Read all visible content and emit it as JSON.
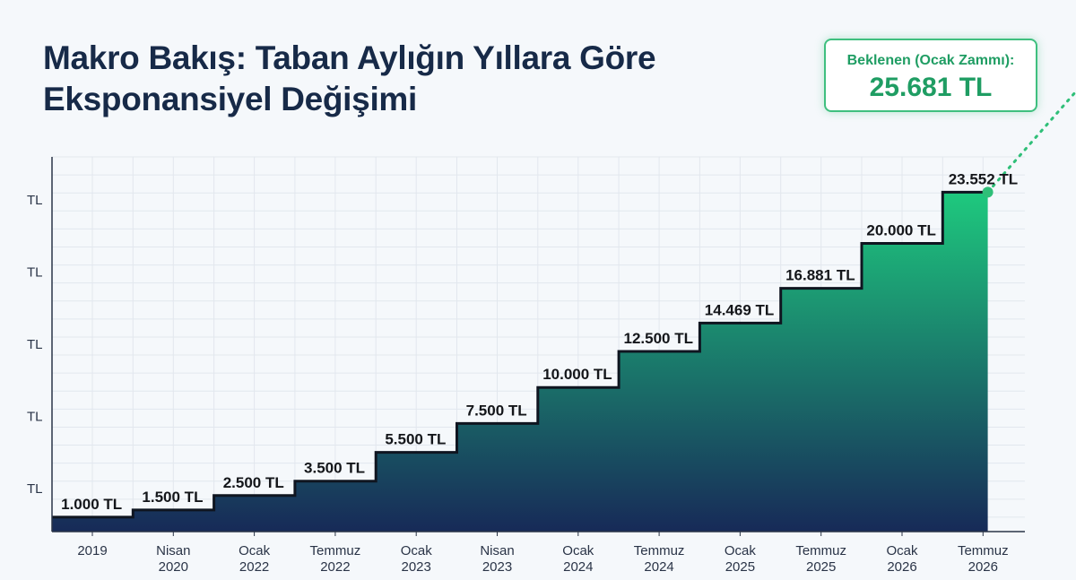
{
  "title_line1": "Makro Bakış: Taban Aylığın Yıllara Göre",
  "title_line2": "Eksponansiyel Değişimi",
  "callout": {
    "label": "Beklenen (Ocak Zammı):",
    "value": "25.681 TL"
  },
  "colors": {
    "title": "#172a48",
    "accent": "#1f9d63",
    "area_top": "#1ec97e",
    "area_bottom": "#172a58",
    "step_line": "#0f1520",
    "grid": "#e2e7ee"
  },
  "chart_data": {
    "type": "area",
    "subtype": "step",
    "title": "Makro Bakış: Taban Aylığın Yıllara Göre Eksponansiyel Değişimi",
    "categories": [
      [
        "2019"
      ],
      [
        "Nisan",
        "2020"
      ],
      [
        "Ocak",
        "2022"
      ],
      [
        "Temmuz",
        "2022"
      ],
      [
        "Ocak",
        "2023"
      ],
      [
        "Nisan",
        "2023"
      ],
      [
        "Ocak",
        "2024"
      ],
      [
        "Temmuz",
        "2024"
      ],
      [
        "Ocak",
        "2025"
      ],
      [
        "Temmuz",
        "2025"
      ],
      [
        "Ocak",
        "2026"
      ],
      [
        "Temmuz",
        "2026"
      ]
    ],
    "values": [
      1000,
      1500,
      2500,
      3500,
      5500,
      7500,
      10000,
      12500,
      14469,
      16881,
      20000,
      23552
    ],
    "value_labels": [
      "1.000 TL",
      "1.500 TL",
      "2.500 TL",
      "3.500 TL",
      "5.500 TL",
      "7.500 TL",
      "10.000 TL",
      "12.500 TL",
      "14.469 TL",
      "16.881 TL",
      "20.000 TL",
      "23.552 TL"
    ],
    "projected": {
      "value": 25681,
      "label": "25.681 TL",
      "style": "dotted"
    },
    "y_tick_labels": [
      "TL",
      "TL",
      "TL",
      "TL",
      "TL"
    ],
    "y_ticks": [
      3000,
      8000,
      13000,
      18000,
      23000
    ],
    "ylim": [
      0,
      26000
    ],
    "grid": true,
    "legend": "none"
  }
}
